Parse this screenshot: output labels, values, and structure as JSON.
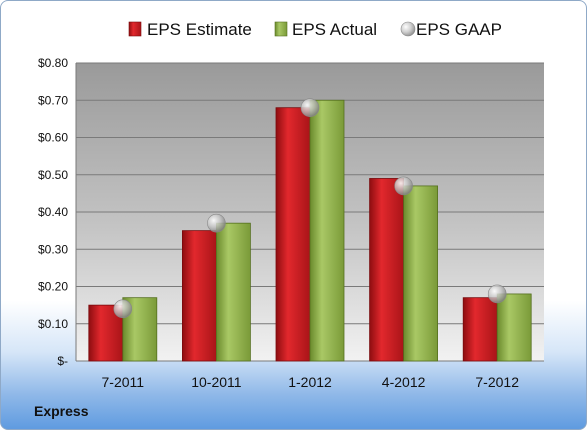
{
  "company": "Express",
  "chart_data": {
    "type": "bar",
    "categories": [
      "7-2011",
      "10-2011",
      "1-2012",
      "4-2012",
      "7-2012"
    ],
    "series": [
      {
        "name": "EPS Estimate",
        "type": "bar",
        "values": [
          0.15,
          0.35,
          0.68,
          0.49,
          0.17
        ],
        "color": "#c0161b"
      },
      {
        "name": "EPS Actual",
        "type": "bar",
        "values": [
          0.17,
          0.37,
          0.7,
          0.47,
          0.18
        ],
        "color": "#8fb045"
      },
      {
        "name": "EPS GAAP",
        "type": "scatter",
        "values": [
          0.14,
          0.37,
          0.68,
          0.47,
          0.18
        ],
        "color": "#b8b8b8"
      }
    ],
    "yticks": [
      0,
      0.1,
      0.2,
      0.3,
      0.4,
      0.5,
      0.6,
      0.7,
      0.8
    ],
    "ytick_labels": [
      "$-",
      "$0.10",
      "$0.20",
      "$0.30",
      "$0.40",
      "$0.50",
      "$0.60",
      "$0.70",
      "$0.80"
    ],
    "ylim": [
      0,
      0.8
    ],
    "grid": true,
    "legend_position": "top"
  }
}
